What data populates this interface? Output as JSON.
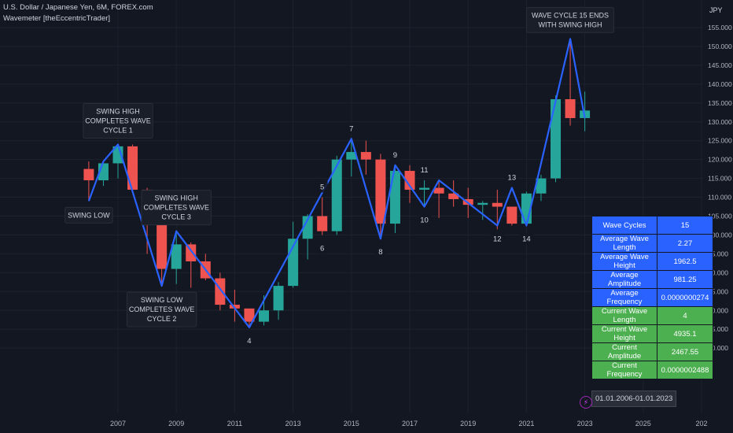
{
  "header": {
    "symbol_line": "U.S. Dollar / Japanese Yen, 6M, FOREX.com",
    "indicator_line": "Wavemeter [theEccentricTrader]"
  },
  "colors": {
    "background": "#131722",
    "up": "#26a69a",
    "down": "#ef5350",
    "wave": "#2962ff",
    "grid": "#1e222d",
    "table_blue": "#2962ff",
    "table_green": "#4caf50"
  },
  "chart_data": {
    "type": "candlestick",
    "currency_label": "JPY",
    "ylim": [
      68,
      160
    ],
    "x_tick_labels": [
      "2007",
      "2009",
      "2011",
      "2013",
      "2015",
      "2017",
      "2019",
      "2021",
      "2023",
      "2025",
      "202"
    ],
    "y_ticks": [
      70,
      75,
      80,
      85,
      90,
      95,
      100,
      105,
      110,
      115,
      120,
      125,
      130,
      135,
      140,
      145,
      150,
      155
    ],
    "y_tick_labels": [
      "70.000",
      "75.000",
      "80.000",
      "85.000",
      "90.000",
      "95.000",
      "100.000",
      "105.000",
      "110.000",
      "115.000",
      "120.000",
      "125.000",
      "130.000",
      "135.000",
      "140.000",
      "145.000",
      "150.000",
      "155.000"
    ],
    "candles": [
      {
        "t": 2006.0,
        "o": 117.5,
        "h": 119.5,
        "l": 109,
        "c": 114.5
      },
      {
        "t": 2006.5,
        "o": 114.5,
        "h": 119,
        "l": 113,
        "c": 119
      },
      {
        "t": 2007.0,
        "o": 119,
        "h": 124,
        "l": 115,
        "c": 123.5
      },
      {
        "t": 2007.5,
        "o": 123.5,
        "h": 124,
        "l": 111,
        "c": 112
      },
      {
        "t": 2008.0,
        "o": 112,
        "h": 112.5,
        "l": 95,
        "c": 106
      },
      {
        "t": 2008.5,
        "o": 106,
        "h": 110,
        "l": 86.5,
        "c": 91
      },
      {
        "t": 2009.0,
        "o": 91,
        "h": 101,
        "l": 87,
        "c": 97.5
      },
      {
        "t": 2009.5,
        "o": 97.5,
        "h": 98,
        "l": 86,
        "c": 93
      },
      {
        "t": 2010.0,
        "o": 93,
        "h": 95,
        "l": 88,
        "c": 88.5
      },
      {
        "t": 2010.5,
        "o": 88.5,
        "h": 90,
        "l": 80,
        "c": 81.5
      },
      {
        "t": 2011.0,
        "o": 81.5,
        "h": 85.5,
        "l": 77,
        "c": 80.5
      },
      {
        "t": 2011.5,
        "o": 80.5,
        "h": 80.5,
        "l": 75.5,
        "c": 77
      },
      {
        "t": 2012.0,
        "o": 77,
        "h": 84,
        "l": 76,
        "c": 80
      },
      {
        "t": 2012.5,
        "o": 80,
        "h": 87.5,
        "l": 77.5,
        "c": 86.5
      },
      {
        "t": 2013.0,
        "o": 86.5,
        "h": 103.5,
        "l": 86,
        "c": 99
      },
      {
        "t": 2013.5,
        "o": 99,
        "h": 105.5,
        "l": 93.5,
        "c": 105
      },
      {
        "t": 2014.0,
        "o": 105,
        "h": 110,
        "l": 100,
        "c": 101
      },
      {
        "t": 2014.5,
        "o": 101,
        "h": 121,
        "l": 100,
        "c": 120
      },
      {
        "t": 2015.0,
        "o": 120,
        "h": 125.5,
        "l": 115.5,
        "c": 122
      },
      {
        "t": 2015.5,
        "o": 122,
        "h": 125,
        "l": 116,
        "c": 120
      },
      {
        "t": 2016.0,
        "o": 120,
        "h": 121.5,
        "l": 99,
        "c": 103
      },
      {
        "t": 2016.5,
        "o": 103,
        "h": 118,
        "l": 100.5,
        "c": 117
      },
      {
        "t": 2017.0,
        "o": 117,
        "h": 118.5,
        "l": 108.5,
        "c": 112
      },
      {
        "t": 2017.5,
        "o": 112,
        "h": 114.5,
        "l": 107.5,
        "c": 112.5
      },
      {
        "t": 2018.0,
        "o": 112.5,
        "h": 114.5,
        "l": 104.5,
        "c": 111
      },
      {
        "t": 2018.5,
        "o": 111,
        "h": 114.5,
        "l": 107.5,
        "c": 109.5
      },
      {
        "t": 2019.0,
        "o": 109.5,
        "h": 112.5,
        "l": 104.5,
        "c": 108
      },
      {
        "t": 2019.5,
        "o": 108,
        "h": 109,
        "l": 104,
        "c": 108.5
      },
      {
        "t": 2020.0,
        "o": 108.5,
        "h": 112,
        "l": 101.5,
        "c": 107.5
      },
      {
        "t": 2020.5,
        "o": 107.5,
        "h": 107.5,
        "l": 102.5,
        "c": 103
      },
      {
        "t": 2021.0,
        "o": 103,
        "h": 111.5,
        "l": 102.5,
        "c": 111
      },
      {
        "t": 2021.5,
        "o": 111,
        "h": 116,
        "l": 109,
        "c": 115
      },
      {
        "t": 2022.0,
        "o": 115,
        "h": 137,
        "l": 114,
        "c": 136
      },
      {
        "t": 2022.5,
        "o": 136,
        "h": 152,
        "l": 129,
        "c": 131
      },
      {
        "t": 2023.0,
        "o": 131,
        "h": 138,
        "l": 127.5,
        "c": 133
      }
    ],
    "wave_line": [
      [
        2006.0,
        109
      ],
      [
        2006.5,
        119.5
      ],
      [
        2007.0,
        124
      ],
      [
        2008.5,
        86.5
      ],
      [
        2009.0,
        101
      ],
      [
        2011.5,
        75.5
      ],
      [
        2015.0,
        125.5
      ],
      [
        2016.0,
        99
      ],
      [
        2016.5,
        118.5
      ],
      [
        2017.5,
        107.5
      ],
      [
        2018.0,
        114.5
      ],
      [
        2020.0,
        102.5
      ],
      [
        2020.5,
        112.5
      ],
      [
        2021.0,
        102.5
      ],
      [
        2022.5,
        152
      ],
      [
        2023.0,
        131
      ]
    ],
    "numbered_labels": [
      {
        "text": "4",
        "t": 2011.5,
        "y": 75.5,
        "pos": "below"
      },
      {
        "text": "5",
        "t": 2014.0,
        "y": 110,
        "pos": "above"
      },
      {
        "text": "6",
        "t": 2014.0,
        "y": 100,
        "pos": "below"
      },
      {
        "text": "7",
        "t": 2015.0,
        "y": 125.5,
        "pos": "above"
      },
      {
        "text": "8",
        "t": 2016.0,
        "y": 99,
        "pos": "below"
      },
      {
        "text": "9",
        "t": 2016.5,
        "y": 118.5,
        "pos": "above"
      },
      {
        "text": "10",
        "t": 2017.5,
        "y": 107.5,
        "pos": "below"
      },
      {
        "text": "11",
        "t": 2017.5,
        "y": 114.5,
        "pos": "above"
      },
      {
        "text": "12",
        "t": 2020.0,
        "y": 102.5,
        "pos": "below"
      },
      {
        "text": "13",
        "t": 2020.5,
        "y": 112.5,
        "pos": "above"
      },
      {
        "text": "14",
        "t": 2021.0,
        "y": 102.5,
        "pos": "below"
      }
    ],
    "annotations": [
      {
        "lines": [
          "SWING LOW"
        ],
        "t": 2006.0,
        "y": 109,
        "pos": "below"
      },
      {
        "lines": [
          "SWING HIGH",
          "COMPLETES WAVE",
          "CYCLE 1"
        ],
        "t": 2007.0,
        "y": 124,
        "pos": "above"
      },
      {
        "lines": [
          "SWING LOW",
          "COMPLETES WAVE",
          "CYCLE 2"
        ],
        "t": 2008.5,
        "y": 86.5,
        "pos": "below"
      },
      {
        "lines": [
          "SWING HIGH",
          "COMPLETES WAVE",
          "CYCLE 3"
        ],
        "t": 2009.0,
        "y": 101,
        "pos": "above"
      },
      {
        "lines": [
          "WAVE CYCLE 15 ENDS",
          "WITH SWING HIGH"
        ],
        "t": 2022.5,
        "y": 152,
        "pos": "above"
      }
    ]
  },
  "stats_table": {
    "rows": [
      {
        "label": "Wave Cycles",
        "value": "15",
        "color": "blue"
      },
      {
        "label": "Average Wave Length",
        "value": "2.27",
        "color": "blue"
      },
      {
        "label": "Average Wave Height",
        "value": "1962.5",
        "color": "blue"
      },
      {
        "label": "Average Amplitude",
        "value": "981.25",
        "color": "blue"
      },
      {
        "label": "Average Frequency",
        "value": "0.0000000274",
        "color": "blue"
      },
      {
        "label": "Current Wave Length",
        "value": "4",
        "color": "green"
      },
      {
        "label": "Current Wave Height",
        "value": "4935.1",
        "color": "green"
      },
      {
        "label": "Current Amplitude",
        "value": "2467.55",
        "color": "green"
      },
      {
        "label": "Current Frequency",
        "value": "0.0000002488",
        "color": "green"
      }
    ],
    "date_range": "01.01.2006-01.01.2023"
  },
  "lightning_icon": "lightning-icon"
}
